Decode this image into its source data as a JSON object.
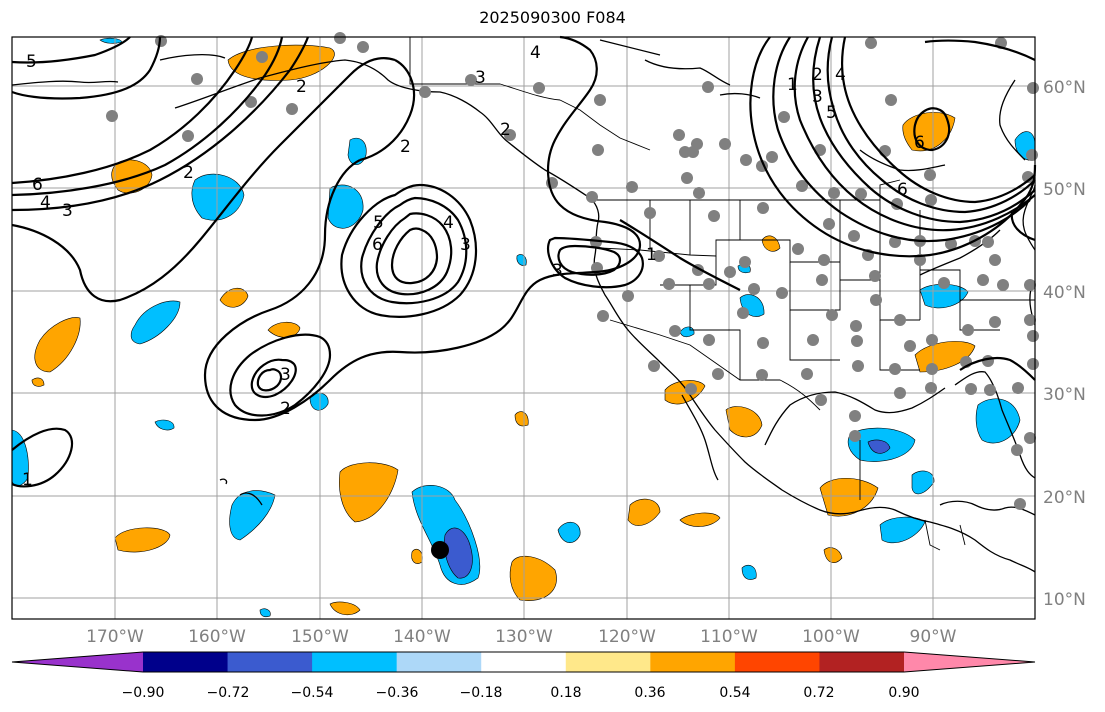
{
  "title": "2025090300 F084",
  "map": {
    "longitude_labels": [
      "170°W",
      "160°W",
      "150°W",
      "140°W",
      "130°W",
      "120°W",
      "110°W",
      "100°W",
      "90°W"
    ],
    "latitude_labels": [
      "60°N",
      "50°N",
      "40°N",
      "30°N",
      "20°N",
      "10°N"
    ],
    "contour_labels": [
      "5",
      "4",
      "3",
      "6",
      "2",
      "6",
      "5",
      "4",
      "3",
      "2",
      "3",
      "2",
      "3",
      "1",
      "4",
      "3",
      "2",
      "2",
      "1",
      "2",
      "3",
      "4",
      "5",
      "6",
      "6",
      "1"
    ],
    "storm_marker": "storm-center"
  },
  "colorbar": {
    "ticks": [
      "−0.90",
      "−0.72",
      "−0.54",
      "−0.36",
      "−0.18",
      "0.18",
      "0.36",
      "0.54",
      "0.72",
      "0.90"
    ],
    "colors": [
      "#9932cc",
      "#00008b",
      "#3b5bcf",
      "#00bfff",
      "#add8f8",
      "#ffffff",
      "#ffe88a",
      "#ffa500",
      "#ff4500",
      "#b22222",
      "#ff88aa"
    ]
  },
  "colors": {
    "positive_anomaly": "#ffa500",
    "negative_anomaly": "#00bfff",
    "strong_negative": "#3b5bcf",
    "stations": "#808080",
    "contours": "#000000"
  }
}
